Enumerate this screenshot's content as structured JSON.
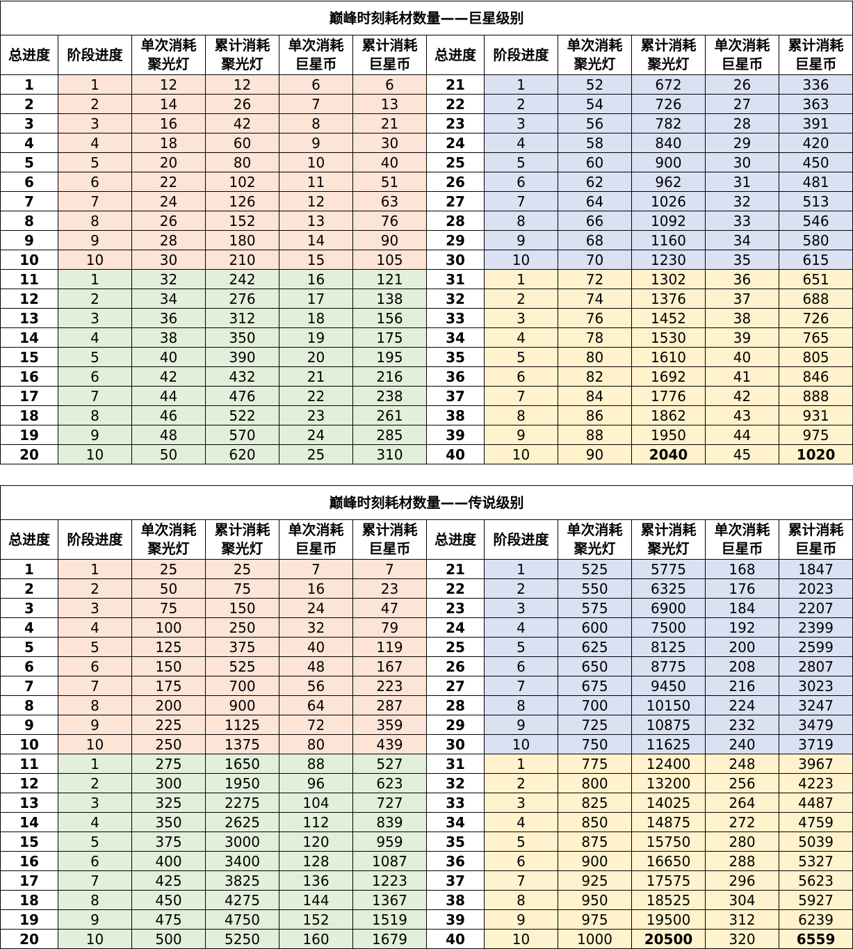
{
  "colors": {
    "stage_1_10": "#fce4d6",
    "stage_11_20": "#e2efda",
    "stage_21_30": "#d9e1f2",
    "stage_31_40": "#fff2cc"
  },
  "headers": [
    "总进度",
    "阶段进度",
    "单次消耗聚光灯",
    "累计消耗聚光灯",
    "单次消耗巨星币",
    "累计消耗巨星币"
  ],
  "tables": [
    {
      "title": "巅峰时刻耗材数量——巨星级别",
      "rows": [
        [
          "1",
          "1",
          "12",
          "12",
          "6",
          "6"
        ],
        [
          "2",
          "2",
          "14",
          "26",
          "7",
          "13"
        ],
        [
          "3",
          "3",
          "16",
          "42",
          "8",
          "21"
        ],
        [
          "4",
          "4",
          "18",
          "60",
          "9",
          "30"
        ],
        [
          "5",
          "5",
          "20",
          "80",
          "10",
          "40"
        ],
        [
          "6",
          "6",
          "22",
          "102",
          "11",
          "51"
        ],
        [
          "7",
          "7",
          "24",
          "126",
          "12",
          "63"
        ],
        [
          "8",
          "8",
          "26",
          "152",
          "13",
          "76"
        ],
        [
          "9",
          "9",
          "28",
          "180",
          "14",
          "90"
        ],
        [
          "10",
          "10",
          "30",
          "210",
          "15",
          "105"
        ],
        [
          "11",
          "1",
          "32",
          "242",
          "16",
          "121"
        ],
        [
          "12",
          "2",
          "34",
          "276",
          "17",
          "138"
        ],
        [
          "13",
          "3",
          "36",
          "312",
          "18",
          "156"
        ],
        [
          "14",
          "4",
          "38",
          "350",
          "19",
          "175"
        ],
        [
          "15",
          "5",
          "40",
          "390",
          "20",
          "195"
        ],
        [
          "16",
          "6",
          "42",
          "432",
          "21",
          "216"
        ],
        [
          "17",
          "7",
          "44",
          "476",
          "22",
          "238"
        ],
        [
          "18",
          "8",
          "46",
          "522",
          "23",
          "261"
        ],
        [
          "19",
          "9",
          "48",
          "570",
          "24",
          "285"
        ],
        [
          "20",
          "10",
          "50",
          "620",
          "25",
          "310"
        ],
        [
          "21",
          "1",
          "52",
          "672",
          "26",
          "336"
        ],
        [
          "22",
          "2",
          "54",
          "726",
          "27",
          "363"
        ],
        [
          "23",
          "3",
          "56",
          "782",
          "28",
          "391"
        ],
        [
          "24",
          "4",
          "58",
          "840",
          "29",
          "420"
        ],
        [
          "25",
          "5",
          "60",
          "900",
          "30",
          "450"
        ],
        [
          "26",
          "6",
          "62",
          "962",
          "31",
          "481"
        ],
        [
          "27",
          "7",
          "64",
          "1026",
          "32",
          "513"
        ],
        [
          "28",
          "8",
          "66",
          "1092",
          "33",
          "546"
        ],
        [
          "29",
          "9",
          "68",
          "1160",
          "34",
          "580"
        ],
        [
          "30",
          "10",
          "70",
          "1230",
          "35",
          "615"
        ],
        [
          "31",
          "1",
          "72",
          "1302",
          "36",
          "651"
        ],
        [
          "32",
          "2",
          "74",
          "1376",
          "37",
          "688"
        ],
        [
          "33",
          "3",
          "76",
          "1452",
          "38",
          "726"
        ],
        [
          "34",
          "4",
          "78",
          "1530",
          "39",
          "765"
        ],
        [
          "35",
          "5",
          "80",
          "1610",
          "40",
          "805"
        ],
        [
          "36",
          "6",
          "82",
          "1692",
          "41",
          "846"
        ],
        [
          "37",
          "7",
          "84",
          "1776",
          "42",
          "888"
        ],
        [
          "38",
          "8",
          "86",
          "1862",
          "43",
          "931"
        ],
        [
          "39",
          "9",
          "88",
          "1950",
          "44",
          "975"
        ],
        [
          "40",
          "10",
          "90",
          "2040",
          "45",
          "1020"
        ]
      ]
    },
    {
      "title": "巅峰时刻耗材数量——传说级别",
      "rows": [
        [
          "1",
          "1",
          "25",
          "25",
          "7",
          "7"
        ],
        [
          "2",
          "2",
          "50",
          "75",
          "16",
          "23"
        ],
        [
          "3",
          "3",
          "75",
          "150",
          "24",
          "47"
        ],
        [
          "4",
          "4",
          "100",
          "250",
          "32",
          "79"
        ],
        [
          "5",
          "5",
          "125",
          "375",
          "40",
          "119"
        ],
        [
          "6",
          "6",
          "150",
          "525",
          "48",
          "167"
        ],
        [
          "7",
          "7",
          "175",
          "700",
          "56",
          "223"
        ],
        [
          "8",
          "8",
          "200",
          "900",
          "64",
          "287"
        ],
        [
          "9",
          "9",
          "225",
          "1125",
          "72",
          "359"
        ],
        [
          "10",
          "10",
          "250",
          "1375",
          "80",
          "439"
        ],
        [
          "11",
          "1",
          "275",
          "1650",
          "88",
          "527"
        ],
        [
          "12",
          "2",
          "300",
          "1950",
          "96",
          "623"
        ],
        [
          "13",
          "3",
          "325",
          "2275",
          "104",
          "727"
        ],
        [
          "14",
          "4",
          "350",
          "2625",
          "112",
          "839"
        ],
        [
          "15",
          "5",
          "375",
          "3000",
          "120",
          "959"
        ],
        [
          "16",
          "6",
          "400",
          "3400",
          "128",
          "1087"
        ],
        [
          "17",
          "7",
          "425",
          "3825",
          "136",
          "1223"
        ],
        [
          "18",
          "8",
          "450",
          "4275",
          "144",
          "1367"
        ],
        [
          "19",
          "9",
          "475",
          "4750",
          "152",
          "1519"
        ],
        [
          "20",
          "10",
          "500",
          "5250",
          "160",
          "1679"
        ],
        [
          "21",
          "1",
          "525",
          "5775",
          "168",
          "1847"
        ],
        [
          "22",
          "2",
          "550",
          "6325",
          "176",
          "2023"
        ],
        [
          "23",
          "3",
          "575",
          "6900",
          "184",
          "2207"
        ],
        [
          "24",
          "4",
          "600",
          "7500",
          "192",
          "2399"
        ],
        [
          "25",
          "5",
          "625",
          "8125",
          "200",
          "2599"
        ],
        [
          "26",
          "6",
          "650",
          "8775",
          "208",
          "2807"
        ],
        [
          "27",
          "7",
          "675",
          "9450",
          "216",
          "3023"
        ],
        [
          "28",
          "8",
          "700",
          "10150",
          "224",
          "3247"
        ],
        [
          "29",
          "9",
          "725",
          "10875",
          "232",
          "3479"
        ],
        [
          "30",
          "10",
          "750",
          "11625",
          "240",
          "3719"
        ],
        [
          "31",
          "1",
          "775",
          "12400",
          "248",
          "3967"
        ],
        [
          "32",
          "2",
          "800",
          "13200",
          "256",
          "4223"
        ],
        [
          "33",
          "3",
          "825",
          "14025",
          "264",
          "4487"
        ],
        [
          "34",
          "4",
          "850",
          "14875",
          "272",
          "4759"
        ],
        [
          "35",
          "5",
          "875",
          "15750",
          "280",
          "5039"
        ],
        [
          "36",
          "6",
          "900",
          "16650",
          "288",
          "5327"
        ],
        [
          "37",
          "7",
          "925",
          "17575",
          "296",
          "5623"
        ],
        [
          "38",
          "8",
          "950",
          "18525",
          "304",
          "5927"
        ],
        [
          "39",
          "9",
          "975",
          "19500",
          "312",
          "6239"
        ],
        [
          "40",
          "10",
          "1000",
          "20500",
          "320",
          "6559"
        ]
      ]
    }
  ]
}
